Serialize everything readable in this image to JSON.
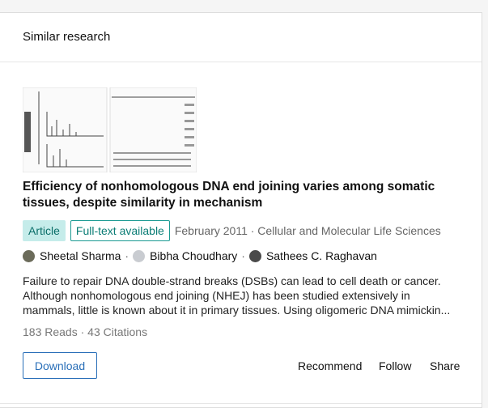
{
  "header": {
    "title": "Similar research"
  },
  "paper": {
    "title": "Efficiency of nonhomologous DNA end joining varies among somatic tissues, despite similarity in mechanism",
    "badges": [
      "Article",
      "Full-text available"
    ],
    "meta": "February 2011 · Cellular and Molecular Life Sciences",
    "authors": [
      "Sheetal Sharma",
      "Bibha Choudhary",
      "Sathees C. Raghavan"
    ],
    "author_separator": "·",
    "abstract": "Failure to repair DNA double-strand breaks (DSBs) can lead to cell death or cancer. Although nonhomologous end joining (NHEJ) has been studied extensively in mammals, little is known about it in primary tissues. Using oligomeric DNA mimickin...",
    "stats": "183 Reads · 43 Citations",
    "actions": {
      "download": "Download",
      "recommend": "Recommend",
      "follow": "Follow",
      "share": "Share"
    }
  }
}
